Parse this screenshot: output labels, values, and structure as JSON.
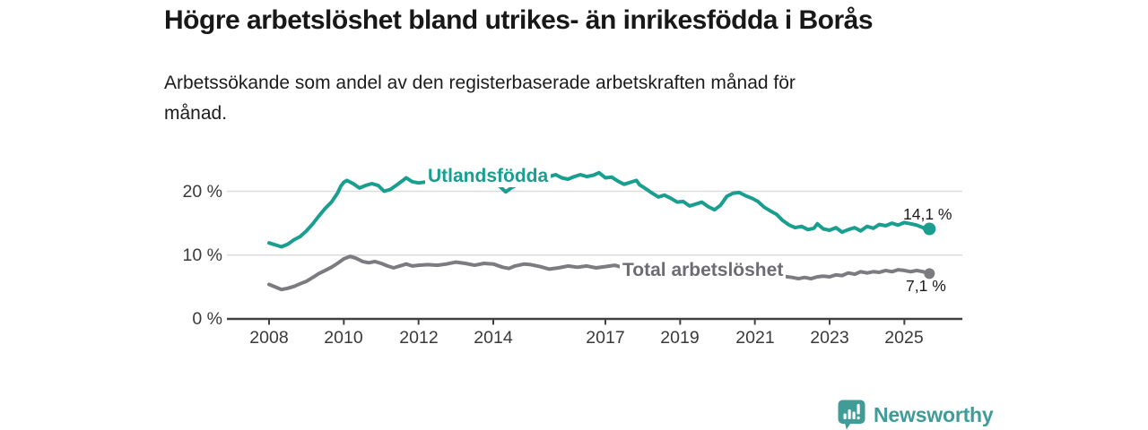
{
  "header": {
    "title": "Högre arbetslöshet bland utrikes- än inrikesfödda i Borås",
    "subtitle_line1": "Arbetssökande som andel av den registerbaserade arbetskraften månad för",
    "subtitle_line2": "månad."
  },
  "chart_data": {
    "type": "line",
    "title": "Högre arbetslöshet bland utrikes- än inrikesfödda i Borås",
    "subtitle": "Arbetssökande som andel av den registerbaserade arbetskraften månad för månad.",
    "unit": "%",
    "grid": "horizontal-gridlines-at-10-and-20",
    "legend_position": "inline-labels-on-lines",
    "xlim": [
      2007.7,
      2026.2
    ],
    "ylim": [
      0,
      25
    ],
    "x_ticks": [
      "2008",
      "2010",
      "2012",
      "2014",
      "2017",
      "2019",
      "2021",
      "2023",
      "2025"
    ],
    "x_tick_years": [
      2008,
      2010,
      2012,
      2014,
      2017,
      2019,
      2021,
      2023,
      2025
    ],
    "y_ticks": [
      "0 %",
      "10 %",
      "20 %"
    ],
    "y_tick_values": [
      0,
      10,
      20
    ],
    "colors": {
      "utlandsfodda": "#1a9e8f",
      "total": "#7c7c80",
      "gridline": "#dcdcdc",
      "axis": "#404040"
    },
    "series": [
      {
        "name": "Total arbetslöshet",
        "color": "#7c7c80",
        "end_label": "7,1 %",
        "end_value": 7.1,
        "marker_r": 6,
        "points": [
          [
            2008.0,
            5.4
          ],
          [
            2008.17,
            5.0
          ],
          [
            2008.33,
            4.6
          ],
          [
            2008.5,
            4.8
          ],
          [
            2008.67,
            5.1
          ],
          [
            2008.83,
            5.5
          ],
          [
            2009.0,
            5.9
          ],
          [
            2009.17,
            6.5
          ],
          [
            2009.33,
            7.1
          ],
          [
            2009.5,
            7.6
          ],
          [
            2009.67,
            8.1
          ],
          [
            2009.83,
            8.7
          ],
          [
            2010.0,
            9.4
          ],
          [
            2010.17,
            9.8
          ],
          [
            2010.33,
            9.5
          ],
          [
            2010.5,
            9.0
          ],
          [
            2010.67,
            8.8
          ],
          [
            2010.83,
            9.0
          ],
          [
            2011.0,
            8.7
          ],
          [
            2011.17,
            8.3
          ],
          [
            2011.33,
            8.0
          ],
          [
            2011.5,
            8.3
          ],
          [
            2011.67,
            8.6
          ],
          [
            2011.83,
            8.3
          ],
          [
            2012.0,
            8.4
          ],
          [
            2012.25,
            8.5
          ],
          [
            2012.5,
            8.4
          ],
          [
            2012.75,
            8.6
          ],
          [
            2013.0,
            8.9
          ],
          [
            2013.25,
            8.7
          ],
          [
            2013.5,
            8.4
          ],
          [
            2013.75,
            8.7
          ],
          [
            2014.0,
            8.6
          ],
          [
            2014.25,
            8.1
          ],
          [
            2014.42,
            7.9
          ],
          [
            2014.58,
            8.3
          ],
          [
            2014.83,
            8.6
          ],
          [
            2015.0,
            8.5
          ],
          [
            2015.25,
            8.2
          ],
          [
            2015.5,
            7.8
          ],
          [
            2015.75,
            8.0
          ],
          [
            2016.0,
            8.3
          ],
          [
            2016.25,
            8.1
          ],
          [
            2016.5,
            8.3
          ],
          [
            2016.75,
            8.0
          ],
          [
            2017.0,
            8.2
          ],
          [
            2017.25,
            8.4
          ],
          [
            2017.5,
            8.0
          ],
          [
            2017.75,
            7.8
          ],
          [
            2018.0,
            7.9
          ],
          [
            2018.25,
            7.7
          ],
          [
            2018.5,
            7.5
          ],
          [
            2018.75,
            7.4
          ],
          [
            2019.0,
            7.3
          ],
          [
            2019.25,
            7.2
          ],
          [
            2019.5,
            7.1
          ],
          [
            2019.75,
            7.2
          ],
          [
            2020.0,
            7.4
          ],
          [
            2020.25,
            8.1
          ],
          [
            2020.5,
            8.4
          ],
          [
            2020.75,
            8.2
          ],
          [
            2021.0,
            7.9
          ],
          [
            2021.25,
            7.4
          ],
          [
            2021.5,
            7.0
          ],
          [
            2021.75,
            6.7
          ],
          [
            2022.0,
            6.5
          ],
          [
            2022.17,
            6.3
          ],
          [
            2022.33,
            6.5
          ],
          [
            2022.5,
            6.3
          ],
          [
            2022.67,
            6.6
          ],
          [
            2022.83,
            6.7
          ],
          [
            2023.0,
            6.6
          ],
          [
            2023.17,
            6.9
          ],
          [
            2023.33,
            6.8
          ],
          [
            2023.5,
            7.2
          ],
          [
            2023.67,
            7.0
          ],
          [
            2023.83,
            7.4
          ],
          [
            2024.0,
            7.2
          ],
          [
            2024.17,
            7.4
          ],
          [
            2024.33,
            7.3
          ],
          [
            2024.5,
            7.6
          ],
          [
            2024.67,
            7.4
          ],
          [
            2024.83,
            7.7
          ],
          [
            2025.0,
            7.6
          ],
          [
            2025.17,
            7.4
          ],
          [
            2025.33,
            7.6
          ],
          [
            2025.5,
            7.4
          ],
          [
            2025.67,
            7.1
          ]
        ]
      },
      {
        "name": "Utlandsfödda",
        "color": "#1a9e8f",
        "end_label": "14,1 %",
        "end_value": 14.1,
        "marker_r": 7,
        "points": [
          [
            2008.0,
            11.9
          ],
          [
            2008.17,
            11.6
          ],
          [
            2008.33,
            11.3
          ],
          [
            2008.5,
            11.7
          ],
          [
            2008.67,
            12.4
          ],
          [
            2008.83,
            12.9
          ],
          [
            2009.0,
            13.8
          ],
          [
            2009.17,
            14.9
          ],
          [
            2009.33,
            16.1
          ],
          [
            2009.5,
            17.3
          ],
          [
            2009.67,
            18.3
          ],
          [
            2009.83,
            19.7
          ],
          [
            2009.92,
            20.8
          ],
          [
            2010.0,
            21.4
          ],
          [
            2010.08,
            21.7
          ],
          [
            2010.25,
            21.2
          ],
          [
            2010.42,
            20.5
          ],
          [
            2010.58,
            20.9
          ],
          [
            2010.75,
            21.2
          ],
          [
            2010.92,
            20.9
          ],
          [
            2011.08,
            20.0
          ],
          [
            2011.25,
            20.3
          ],
          [
            2011.42,
            21.0
          ],
          [
            2011.58,
            21.7
          ],
          [
            2011.67,
            22.1
          ],
          [
            2011.83,
            21.5
          ],
          [
            2012.0,
            21.3
          ],
          [
            2012.25,
            21.5
          ],
          [
            2012.5,
            21.3
          ],
          [
            2012.75,
            21.6
          ],
          [
            2013.0,
            21.5
          ],
          [
            2013.25,
            21.2
          ],
          [
            2013.5,
            20.9
          ],
          [
            2013.75,
            21.3
          ],
          [
            2014.0,
            21.2
          ],
          [
            2014.17,
            20.8
          ],
          [
            2014.33,
            19.9
          ],
          [
            2014.5,
            20.6
          ],
          [
            2014.75,
            21.4
          ],
          [
            2015.0,
            21.8
          ],
          [
            2015.17,
            22.1
          ],
          [
            2015.33,
            21.8
          ],
          [
            2015.5,
            22.3
          ],
          [
            2015.67,
            22.6
          ],
          [
            2015.83,
            22.1
          ],
          [
            2016.0,
            21.9
          ],
          [
            2016.17,
            22.3
          ],
          [
            2016.33,
            22.6
          ],
          [
            2016.5,
            22.3
          ],
          [
            2016.67,
            22.5
          ],
          [
            2016.83,
            22.9
          ],
          [
            2017.0,
            22.1
          ],
          [
            2017.17,
            22.2
          ],
          [
            2017.33,
            21.6
          ],
          [
            2017.5,
            21.1
          ],
          [
            2017.67,
            21.4
          ],
          [
            2017.83,
            21.7
          ],
          [
            2017.92,
            21.0
          ],
          [
            2018.08,
            20.4
          ],
          [
            2018.25,
            19.7
          ],
          [
            2018.42,
            19.1
          ],
          [
            2018.58,
            19.4
          ],
          [
            2018.75,
            18.9
          ],
          [
            2018.92,
            18.3
          ],
          [
            2019.08,
            18.4
          ],
          [
            2019.25,
            17.7
          ],
          [
            2019.42,
            18.0
          ],
          [
            2019.58,
            18.3
          ],
          [
            2019.75,
            17.6
          ],
          [
            2019.92,
            17.1
          ],
          [
            2020.08,
            17.8
          ],
          [
            2020.25,
            19.2
          ],
          [
            2020.42,
            19.7
          ],
          [
            2020.58,
            19.8
          ],
          [
            2020.75,
            19.3
          ],
          [
            2020.92,
            18.9
          ],
          [
            2021.08,
            18.4
          ],
          [
            2021.25,
            17.5
          ],
          [
            2021.42,
            16.9
          ],
          [
            2021.58,
            16.4
          ],
          [
            2021.75,
            15.4
          ],
          [
            2021.92,
            14.7
          ],
          [
            2022.08,
            14.3
          ],
          [
            2022.25,
            14.5
          ],
          [
            2022.42,
            14.0
          ],
          [
            2022.58,
            14.2
          ],
          [
            2022.67,
            14.9
          ],
          [
            2022.83,
            14.1
          ],
          [
            2023.0,
            13.9
          ],
          [
            2023.17,
            14.3
          ],
          [
            2023.33,
            13.6
          ],
          [
            2023.5,
            14.0
          ],
          [
            2023.67,
            14.3
          ],
          [
            2023.83,
            13.8
          ],
          [
            2024.0,
            14.5
          ],
          [
            2024.17,
            14.2
          ],
          [
            2024.33,
            14.8
          ],
          [
            2024.5,
            14.6
          ],
          [
            2024.67,
            15.0
          ],
          [
            2024.83,
            14.7
          ],
          [
            2025.0,
            15.1
          ],
          [
            2025.17,
            14.9
          ],
          [
            2025.33,
            14.7
          ],
          [
            2025.5,
            14.3
          ],
          [
            2025.58,
            13.9
          ],
          [
            2025.67,
            14.1
          ]
        ]
      }
    ]
  },
  "footer": {
    "brand": "Newsworthy",
    "brand_color": "#409c96",
    "logo_icon": "bar-chart-speech-bubble"
  }
}
